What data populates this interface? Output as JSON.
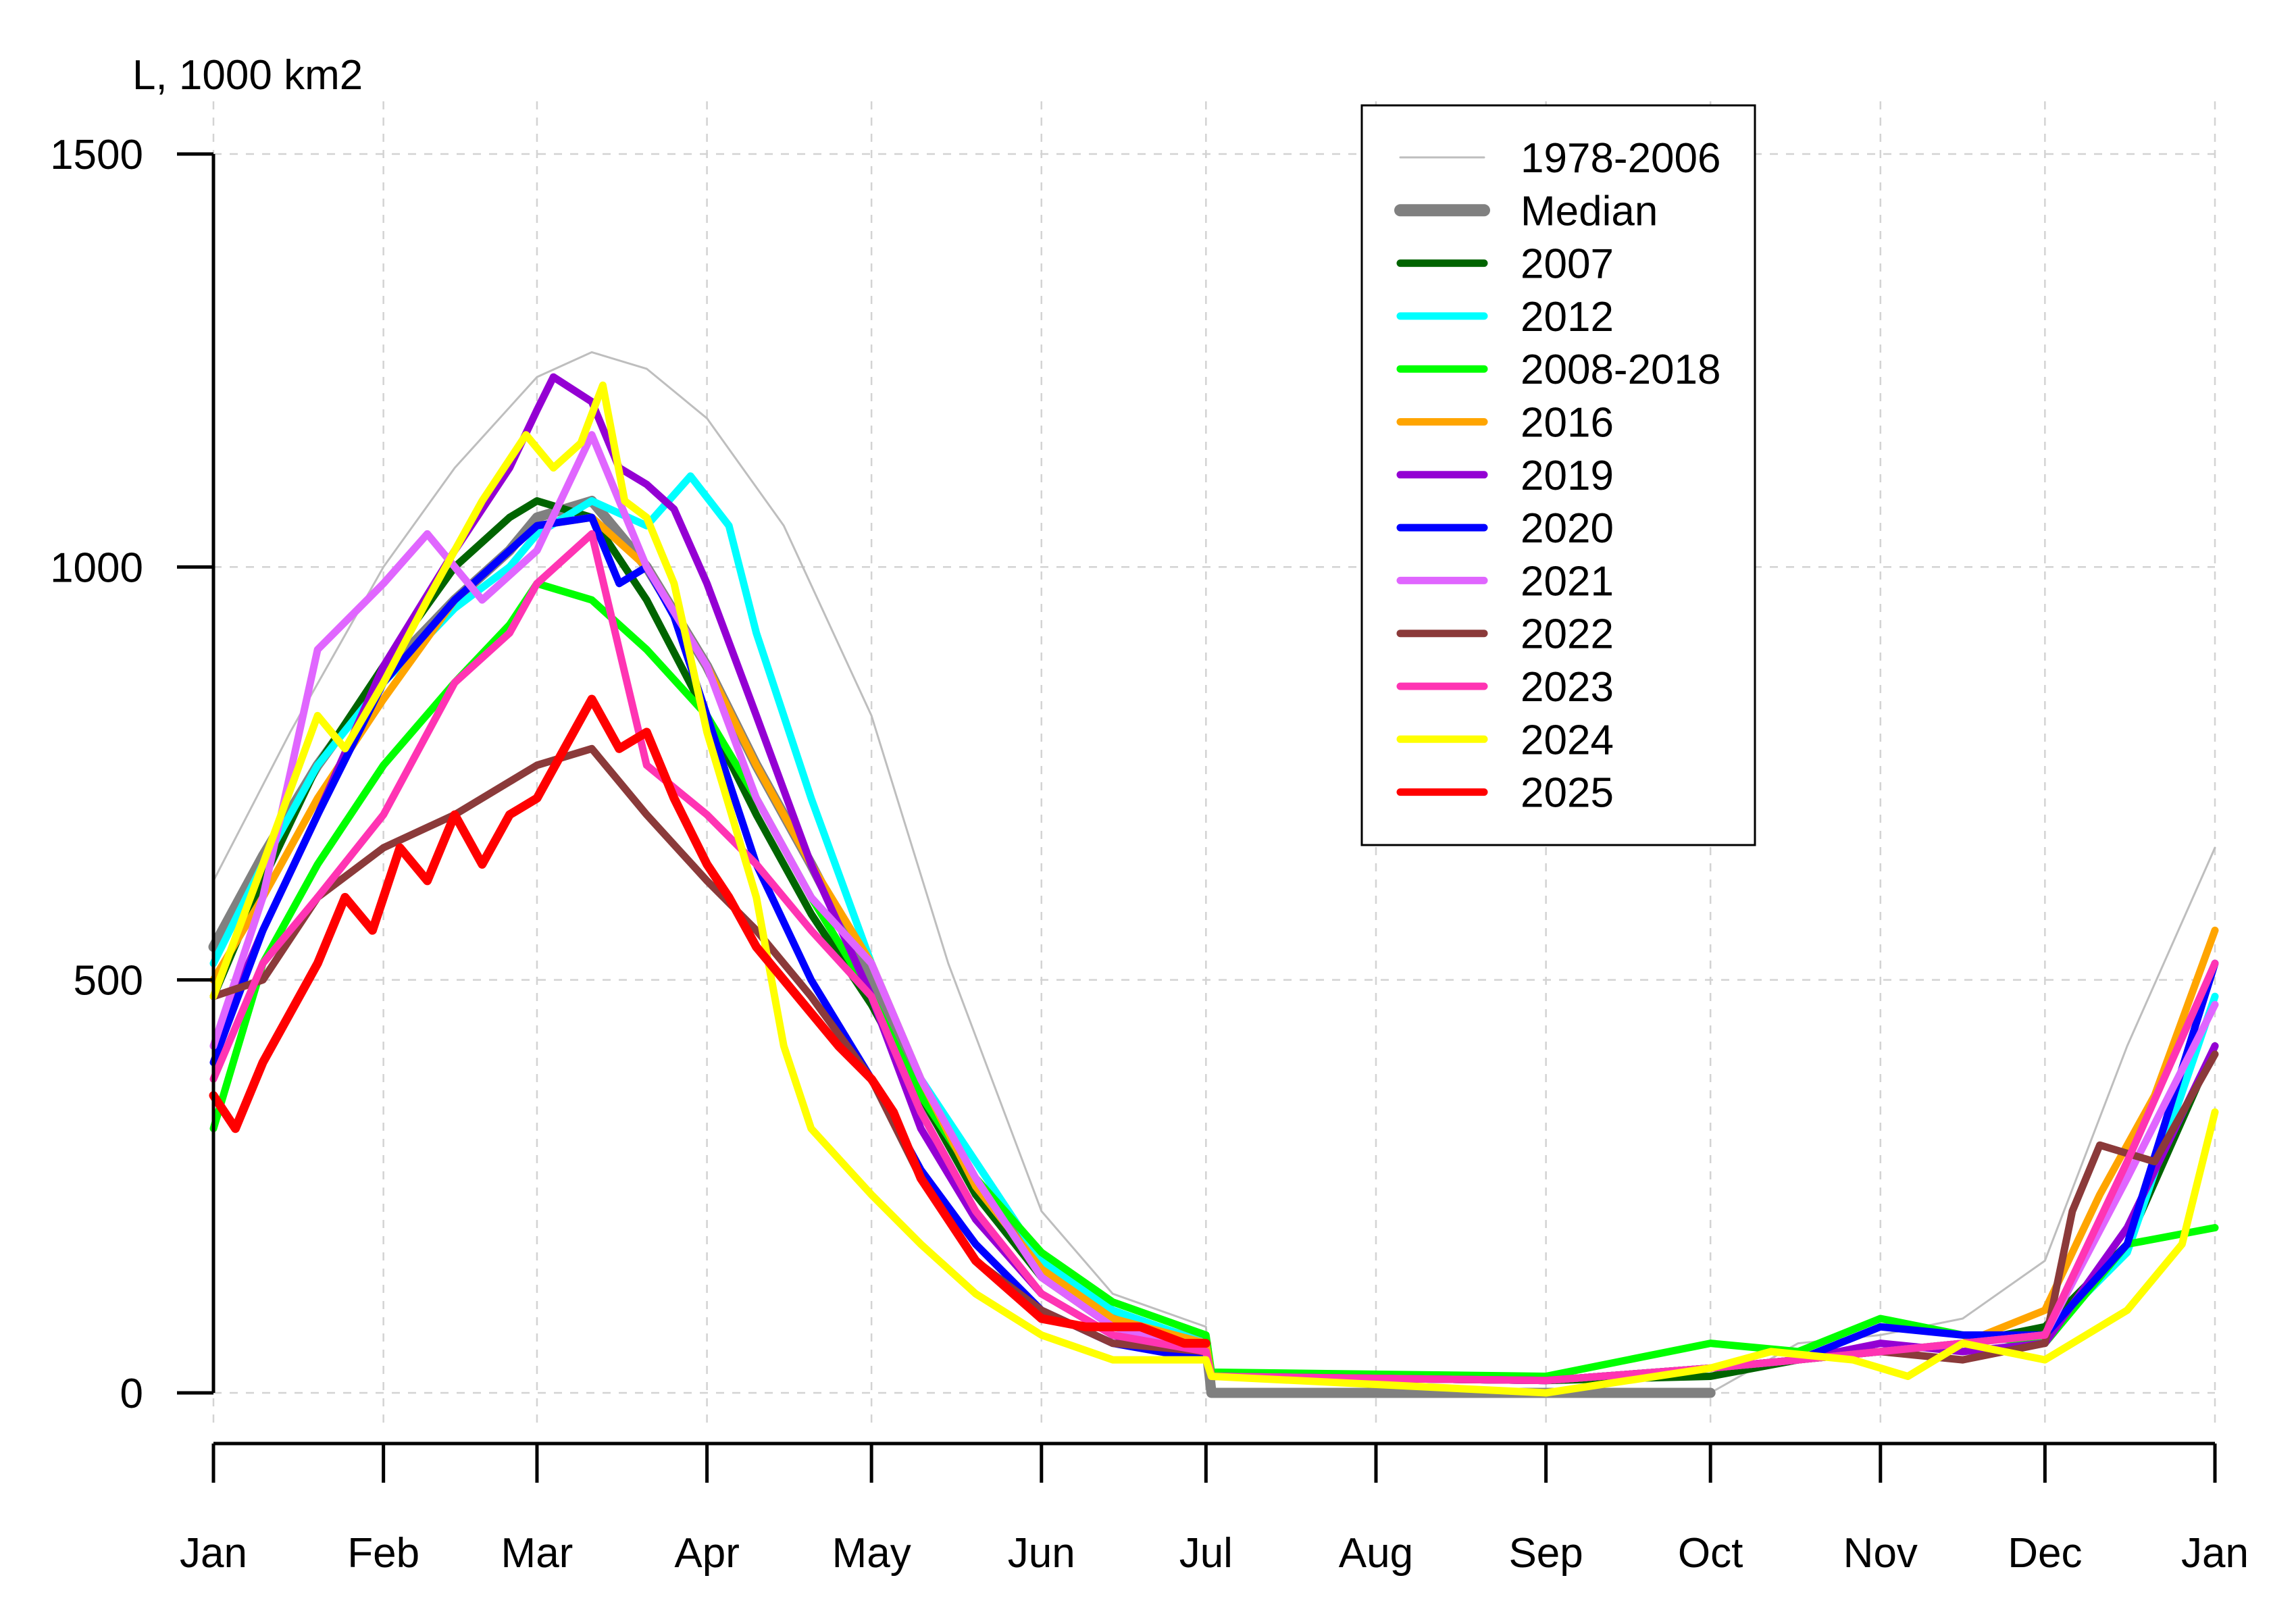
{
  "chart_data": {
    "type": "line",
    "ylabel": "L, 1000 km2",
    "xlabel": "",
    "title": "",
    "ylim": [
      -60,
      1580
    ],
    "xlim": [
      1,
      366
    ],
    "grid": true,
    "legend_position": "top-center",
    "y_ticks": [
      0,
      500,
      1000,
      1500
    ],
    "x_ticks": [
      {
        "label": "Jan",
        "day": 1
      },
      {
        "label": "Feb",
        "day": 32
      },
      {
        "label": "Mar",
        "day": 60
      },
      {
        "label": "Apr",
        "day": 91
      },
      {
        "label": "May",
        "day": 121
      },
      {
        "label": "Jun",
        "day": 152
      },
      {
        "label": "Jul",
        "day": 182
      },
      {
        "label": "Aug",
        "day": 213
      },
      {
        "label": "Sep",
        "day": 244
      },
      {
        "label": "Oct",
        "day": 274
      },
      {
        "label": "Nov",
        "day": 305
      },
      {
        "label": "Dec",
        "day": 335
      },
      {
        "label": "Jan",
        "day": 366
      }
    ],
    "series": [
      {
        "name": "1978-2006",
        "color": "#bebebe",
        "group": "background",
        "x": [
          1,
          15,
          32,
          45,
          60,
          70,
          80,
          91,
          105,
          121,
          135,
          152,
          165,
          182,
          183,
          274,
          290,
          305,
          320,
          335,
          350,
          366
        ],
        "y": [
          620,
          800,
          1000,
          1120,
          1230,
          1260,
          1240,
          1180,
          1050,
          820,
          520,
          220,
          120,
          80,
          0,
          0,
          60,
          70,
          90,
          160,
          420,
          660
        ]
      },
      {
        "name": "Median",
        "color": "#808080",
        "x": [
          1,
          10,
          20,
          32,
          45,
          55,
          60,
          70,
          75,
          80,
          91,
          100,
          110,
          121,
          130,
          140,
          152,
          160,
          170,
          182,
          183,
          274
        ],
        "y": [
          540,
          650,
          760,
          870,
          960,
          1020,
          1060,
          1080,
          1040,
          1000,
          880,
          760,
          640,
          500,
          360,
          250,
          160,
          110,
          85,
          60,
          0,
          0
        ]
      },
      {
        "name": "2007",
        "color": "#006400",
        "x": [
          1,
          10,
          20,
          32,
          45,
          55,
          60,
          70,
          80,
          91,
          100,
          110,
          121,
          130,
          140,
          152,
          165,
          182,
          183,
          244,
          274,
          290,
          305,
          320,
          335,
          350,
          366
        ],
        "y": [
          480,
          620,
          760,
          880,
          1000,
          1060,
          1080,
          1060,
          960,
          820,
          700,
          580,
          470,
          360,
          240,
          140,
          80,
          50,
          20,
          15,
          20,
          40,
          50,
          60,
          80,
          180,
          420
        ]
      },
      {
        "name": "2012",
        "color": "#00ffff",
        "x": [
          1,
          10,
          20,
          32,
          45,
          55,
          60,
          70,
          80,
          88,
          95,
          100,
          110,
          121,
          130,
          140,
          152,
          165,
          182,
          183,
          244,
          274,
          290,
          305,
          320,
          335,
          350,
          366
        ],
        "y": [
          520,
          640,
          760,
          860,
          950,
          1000,
          1040,
          1080,
          1050,
          1110,
          1050,
          920,
          720,
          520,
          380,
          280,
          160,
          100,
          60,
          20,
          15,
          30,
          40,
          50,
          60,
          70,
          170,
          480
        ]
      },
      {
        "name": "2008-2018",
        "color": "#00ff00",
        "x": [
          1,
          10,
          20,
          32,
          45,
          55,
          60,
          70,
          80,
          91,
          100,
          110,
          121,
          130,
          140,
          152,
          165,
          182,
          183,
          244,
          274,
          290,
          305,
          320,
          335,
          350,
          366
        ],
        "y": [
          320,
          520,
          640,
          760,
          860,
          930,
          980,
          960,
          900,
          820,
          720,
          600,
          480,
          360,
          260,
          170,
          110,
          70,
          25,
          20,
          60,
          50,
          90,
          70,
          60,
          180,
          200
        ]
      },
      {
        "name": "2016",
        "color": "#ffa500",
        "x": [
          1,
          10,
          20,
          32,
          45,
          55,
          60,
          70,
          80,
          91,
          100,
          110,
          121,
          130,
          140,
          152,
          165,
          182,
          183,
          244,
          274,
          290,
          305,
          320,
          335,
          345,
          355,
          366
        ],
        "y": [
          500,
          600,
          720,
          840,
          960,
          1020,
          1050,
          1060,
          1000,
          880,
          760,
          640,
          520,
          380,
          250,
          150,
          90,
          60,
          20,
          15,
          30,
          40,
          50,
          60,
          100,
          240,
          360,
          560
        ]
      },
      {
        "name": "2019",
        "color": "#9400d3",
        "x": [
          1,
          10,
          20,
          32,
          45,
          55,
          60,
          63,
          70,
          75,
          80,
          85,
          91,
          100,
          110,
          121,
          130,
          140,
          152,
          165,
          182,
          183,
          244,
          274,
          290,
          305,
          320,
          335,
          350,
          366
        ],
        "y": [
          420,
          560,
          700,
          880,
          1020,
          1120,
          1190,
          1230,
          1200,
          1120,
          1100,
          1070,
          980,
          820,
          640,
          480,
          320,
          210,
          120,
          70,
          40,
          20,
          15,
          30,
          40,
          60,
          50,
          60,
          200,
          420
        ]
      },
      {
        "name": "2020",
        "color": "#0000ff",
        "x": [
          1,
          10,
          20,
          32,
          45,
          55,
          60,
          70,
          75,
          80,
          85,
          91,
          100,
          110,
          121,
          130,
          140,
          152,
          165,
          182,
          183,
          244,
          274,
          290,
          305,
          320,
          335,
          350,
          366
        ],
        "y": [
          400,
          560,
          700,
          860,
          960,
          1020,
          1050,
          1060,
          980,
          1000,
          940,
          820,
          640,
          500,
          380,
          270,
          180,
          100,
          60,
          40,
          20,
          15,
          30,
          40,
          80,
          70,
          70,
          180,
          520
        ]
      },
      {
        "name": "2021",
        "color": "#e066ff",
        "x": [
          1,
          10,
          20,
          32,
          40,
          50,
          60,
          70,
          80,
          91,
          100,
          110,
          121,
          130,
          140,
          152,
          165,
          182,
          183,
          244,
          274,
          290,
          305,
          320,
          335,
          350,
          366
        ],
        "y": [
          420,
          600,
          900,
          980,
          1040,
          960,
          1020,
          1160,
          1000,
          880,
          720,
          600,
          520,
          380,
          260,
          140,
          80,
          50,
          20,
          15,
          30,
          40,
          50,
          60,
          70,
          260,
          470
        ]
      },
      {
        "name": "2022",
        "color": "#8b3a3a",
        "x": [
          1,
          10,
          20,
          32,
          45,
          55,
          60,
          70,
          80,
          91,
          100,
          110,
          121,
          130,
          140,
          152,
          165,
          182,
          183,
          244,
          274,
          290,
          305,
          320,
          335,
          340,
          345,
          355,
          366
        ],
        "y": [
          480,
          500,
          600,
          660,
          700,
          740,
          760,
          780,
          700,
          620,
          560,
          480,
          380,
          260,
          160,
          100,
          60,
          50,
          20,
          15,
          30,
          40,
          50,
          40,
          60,
          220,
          300,
          280,
          410
        ]
      },
      {
        "name": "2023",
        "color": "#ff34b3",
        "x": [
          1,
          10,
          20,
          32,
          45,
          55,
          60,
          70,
          80,
          91,
          100,
          110,
          121,
          130,
          140,
          152,
          165,
          182,
          183,
          244,
          274,
          290,
          305,
          320,
          335,
          350,
          366
        ],
        "y": [
          380,
          520,
          600,
          700,
          860,
          920,
          980,
          1040,
          760,
          700,
          640,
          560,
          480,
          340,
          220,
          120,
          70,
          50,
          20,
          15,
          30,
          40,
          50,
          60,
          70,
          280,
          520
        ]
      },
      {
        "name": "2024",
        "color": "#ffff00",
        "x": [
          1,
          10,
          20,
          25,
          32,
          40,
          50,
          58,
          63,
          68,
          72,
          76,
          80,
          85,
          91,
          100,
          105,
          110,
          121,
          130,
          140,
          152,
          165,
          182,
          183,
          244,
          274,
          285,
          300,
          310,
          320,
          335,
          350,
          360,
          366
        ],
        "y": [
          480,
          640,
          820,
          780,
          860,
          960,
          1080,
          1160,
          1120,
          1150,
          1220,
          1080,
          1060,
          980,
          800,
          600,
          420,
          320,
          240,
          180,
          120,
          70,
          40,
          40,
          20,
          0,
          30,
          50,
          40,
          20,
          60,
          40,
          100,
          180,
          340
        ]
      },
      {
        "name": "2025",
        "color": "#ff0000",
        "x": [
          1,
          5,
          10,
          15,
          20,
          25,
          30,
          35,
          40,
          45,
          50,
          55,
          60,
          65,
          70,
          75,
          80,
          85,
          91,
          95,
          100,
          105,
          110,
          115,
          121,
          125,
          130,
          140,
          152,
          160,
          170,
          178,
          182
        ],
        "y": [
          360,
          320,
          400,
          460,
          520,
          600,
          560,
          660,
          620,
          700,
          640,
          700,
          720,
          780,
          840,
          780,
          800,
          720,
          640,
          600,
          540,
          500,
          460,
          420,
          380,
          340,
          260,
          160,
          90,
          80,
          80,
          60,
          60
        ]
      }
    ]
  }
}
